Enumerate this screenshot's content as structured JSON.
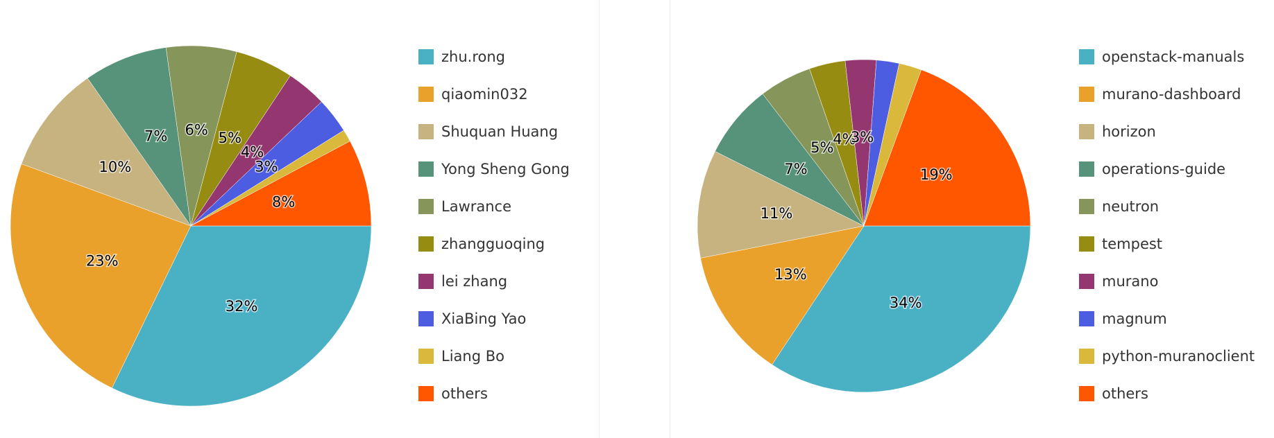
{
  "chart_data": [
    {
      "type": "pie",
      "categories": [
        "zhu.rong",
        "qiaomin032",
        "Shuquan Huang",
        "Yong Sheng Gong",
        "Lawrance",
        "zhangguoqing",
        "lei zhang",
        "XiaBing Yao",
        "Liang Bo",
        "others"
      ],
      "values": [
        32.2,
        23.4,
        9.7,
        7.5,
        6.3,
        5.2,
        3.6,
        3.2,
        1.1,
        7.8
      ],
      "labels": [
        "32%",
        "23%",
        "10%",
        "7%",
        "6%",
        "5%",
        "4%",
        "3%",
        "",
        "8%"
      ],
      "colors": [
        "#4ab1c5",
        "#eaa12b",
        "#c7b37f",
        "#56937a",
        "#86965a",
        "#978c12",
        "#943771",
        "#4d5de2",
        "#d9b83b",
        "#ff5600"
      ],
      "legend_placement": "right"
    },
    {
      "type": "pie",
      "categories": [
        "openstack-manuals",
        "murano-dashboard",
        "horizon",
        "operations-guide",
        "neutron",
        "tempest",
        "murano",
        "magnum",
        "python-muranoclient",
        "others"
      ],
      "values": [
        34.3,
        12.6,
        10.5,
        7.2,
        5.1,
        3.5,
        3.0,
        2.2,
        2.2,
        19.4
      ],
      "labels": [
        "34%",
        "13%",
        "11%",
        "7%",
        "5%",
        "4%",
        "3%",
        "",
        "",
        "19%"
      ],
      "colors": [
        "#4ab1c5",
        "#eaa12b",
        "#c7b37f",
        "#56937a",
        "#86965a",
        "#978c12",
        "#943771",
        "#4d5de2",
        "#d9b83b",
        "#ff5600"
      ],
      "legend_placement": "right"
    }
  ]
}
